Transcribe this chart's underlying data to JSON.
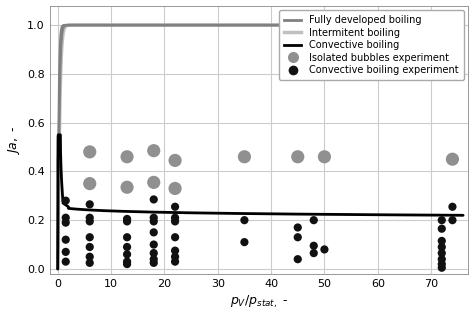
{
  "xlabel": "$p_V/p_{stat,}$ -",
  "ylabel": "$Ja,$ -",
  "xlim": [
    -1.5,
    77
  ],
  "ylim": [
    -0.02,
    1.08
  ],
  "xticks": [
    0,
    10,
    20,
    30,
    40,
    50,
    60,
    70
  ],
  "yticks": [
    0.0,
    0.2,
    0.4,
    0.6,
    0.8,
    1.0
  ],
  "legend_entries": [
    "Fully developed boiling",
    "Intermitent boiling",
    "Convective boiling",
    "Isolated bubbles experiment",
    "Convective boiling experiment"
  ],
  "isolated_bubbles_x": [
    6,
    6,
    13,
    13,
    18,
    18,
    22,
    22,
    35,
    45,
    50,
    74
  ],
  "isolated_bubbles_y": [
    0.48,
    0.35,
    0.46,
    0.335,
    0.485,
    0.355,
    0.445,
    0.33,
    0.46,
    0.46,
    0.46,
    0.45
  ],
  "convective_x": [
    1.5,
    1.5,
    1.5,
    1.5,
    1.5,
    1.5,
    6,
    6,
    6,
    6,
    6,
    6,
    6,
    13,
    13,
    13,
    13,
    13,
    13,
    13,
    18,
    18,
    18,
    18,
    18,
    18,
    18,
    18,
    22,
    22,
    22,
    22,
    22,
    22,
    22,
    35,
    35,
    45,
    45,
    45,
    48,
    48,
    48,
    50,
    72,
    72,
    72,
    72,
    72,
    72,
    72,
    72,
    74,
    74
  ],
  "convective_y": [
    0.28,
    0.21,
    0.19,
    0.12,
    0.07,
    0.03,
    0.265,
    0.21,
    0.195,
    0.13,
    0.09,
    0.05,
    0.025,
    0.205,
    0.195,
    0.13,
    0.09,
    0.06,
    0.03,
    0.02,
    0.285,
    0.21,
    0.195,
    0.15,
    0.1,
    0.065,
    0.04,
    0.025,
    0.255,
    0.21,
    0.195,
    0.13,
    0.075,
    0.05,
    0.03,
    0.2,
    0.11,
    0.17,
    0.13,
    0.04,
    0.2,
    0.095,
    0.065,
    0.08,
    0.2,
    0.165,
    0.115,
    0.09,
    0.065,
    0.04,
    0.02,
    0.005,
    0.255,
    0.2
  ],
  "fully_developed_color": "#808080",
  "intermittent_color": "#c0c0c0",
  "convective_line_color": "#000000",
  "isolated_color": "#909090",
  "convective_dot_color": "#111111",
  "background_color": "#ffffff",
  "grid_color": "#cccccc"
}
